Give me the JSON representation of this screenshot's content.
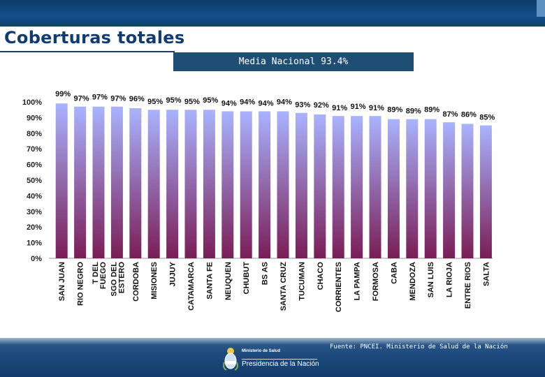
{
  "header": {
    "title": "Coberturas totales"
  },
  "summary_banner": {
    "text": "Media Nacional 93.4%"
  },
  "colors": {
    "bar_top": "#a9b3ff",
    "bar_bottom": "#7a1d56",
    "header_bg": "#14508a",
    "title": "#0f3c73"
  },
  "chart_data": {
    "type": "bar",
    "title": "",
    "xlabel": "",
    "ylabel": "",
    "ylim": [
      0,
      100
    ],
    "yticks": [
      "0%",
      "10%",
      "20%",
      "30%",
      "40%",
      "50%",
      "60%",
      "70%",
      "80%",
      "90%",
      "100%"
    ],
    "categories": [
      "SAN JUAN",
      "RIO NEGRO",
      "T DEL FUEGO",
      "SGO DEL ESTERO",
      "CORDOBA",
      "MISIONES",
      "JUJUY",
      "CATAMARCA",
      "SANTA FE",
      "NEUQUEN",
      "CHUBUT",
      "BS AS",
      "SANTA CRUZ",
      "TUCUMAN",
      "CHACO",
      "CORRIENTES",
      "LA PAMPA",
      "FORMOSA",
      "CABA",
      "MENDOZA",
      "SAN LUIS",
      "LA RIOJA",
      "ENTRE RIOS",
      "SALTA"
    ],
    "values": [
      99,
      97,
      97,
      97,
      96,
      95,
      95,
      95,
      95,
      94,
      94,
      94,
      94,
      93,
      92,
      91,
      91,
      91,
      89,
      89,
      89,
      87,
      86,
      85
    ],
    "data_labels": [
      "99%",
      "97%",
      "97%",
      "97%",
      "96%",
      "95%",
      "95%",
      "95%",
      "95%",
      "94%",
      "94%",
      "94%",
      "94%",
      "93%",
      "92%",
      "91%",
      "91%",
      "91%",
      "89%",
      "89%",
      "89%",
      "87%",
      "86%",
      "85%"
    ]
  },
  "footer": {
    "source": "Fuente: PNCEI. Ministerio de Salud de la Nación",
    "ministry_logo": "Ministerio de Salud",
    "presidency": "Presidencia de la Nación",
    "emblem_icon": "argentina-coat-of-arms-icon"
  }
}
